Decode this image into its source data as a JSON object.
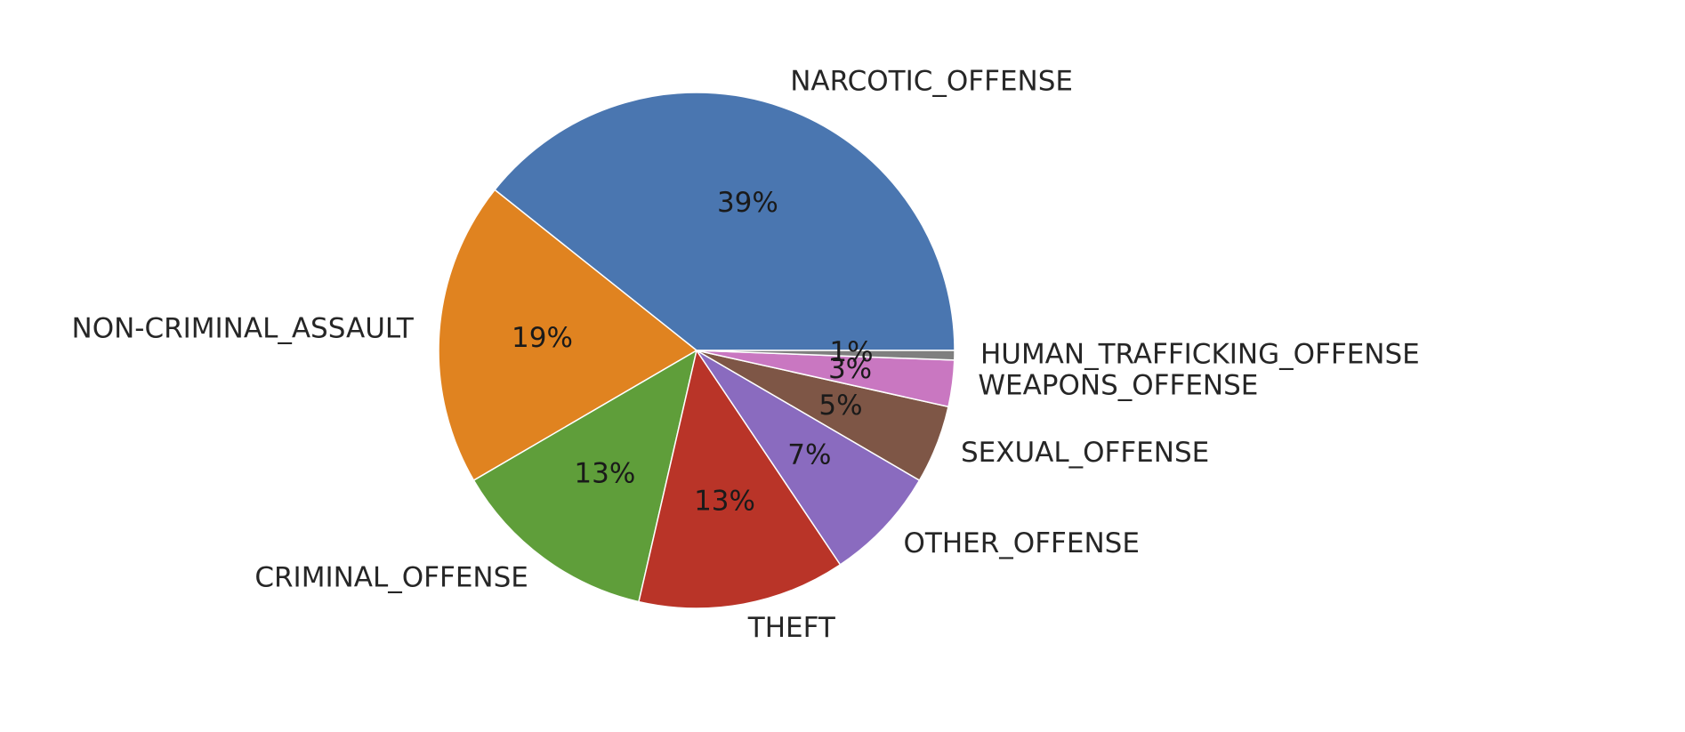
{
  "chart_data": {
    "type": "pie",
    "title": "",
    "start_angle_deg": 0,
    "direction": "counterclockwise",
    "legend": "none",
    "slices": [
      {
        "label": "NARCOTIC_OFFENSE",
        "value": 39.3,
        "pct_label": "39%",
        "color": "#4a76b0"
      },
      {
        "label": "NON-CRIMINAL_ASSAULT",
        "value": 19.1,
        "pct_label": "19%",
        "color": "#e08320"
      },
      {
        "label": "CRIMINAL_OFFENSE",
        "value": 13.0,
        "pct_label": "13%",
        "color": "#5f9e3a"
      },
      {
        "label": "THEFT",
        "value": 13.0,
        "pct_label": "13%",
        "color": "#b93428"
      },
      {
        "label": "OTHER_OFFENSE",
        "value": 7.2,
        "pct_label": "7%",
        "color": "#8a6bbf"
      },
      {
        "label": "SEXUAL_OFFENSE",
        "value": 4.9,
        "pct_label": "5%",
        "color": "#7e5646"
      },
      {
        "label": "WEAPONS_OFFENSE",
        "value": 2.9,
        "pct_label": "3%",
        "color": "#c977c1"
      },
      {
        "label": "HUMAN_TRAFFICKING_OFFENSE",
        "value": 0.6,
        "pct_label": "1%",
        "color": "#7f7f7f"
      }
    ]
  }
}
